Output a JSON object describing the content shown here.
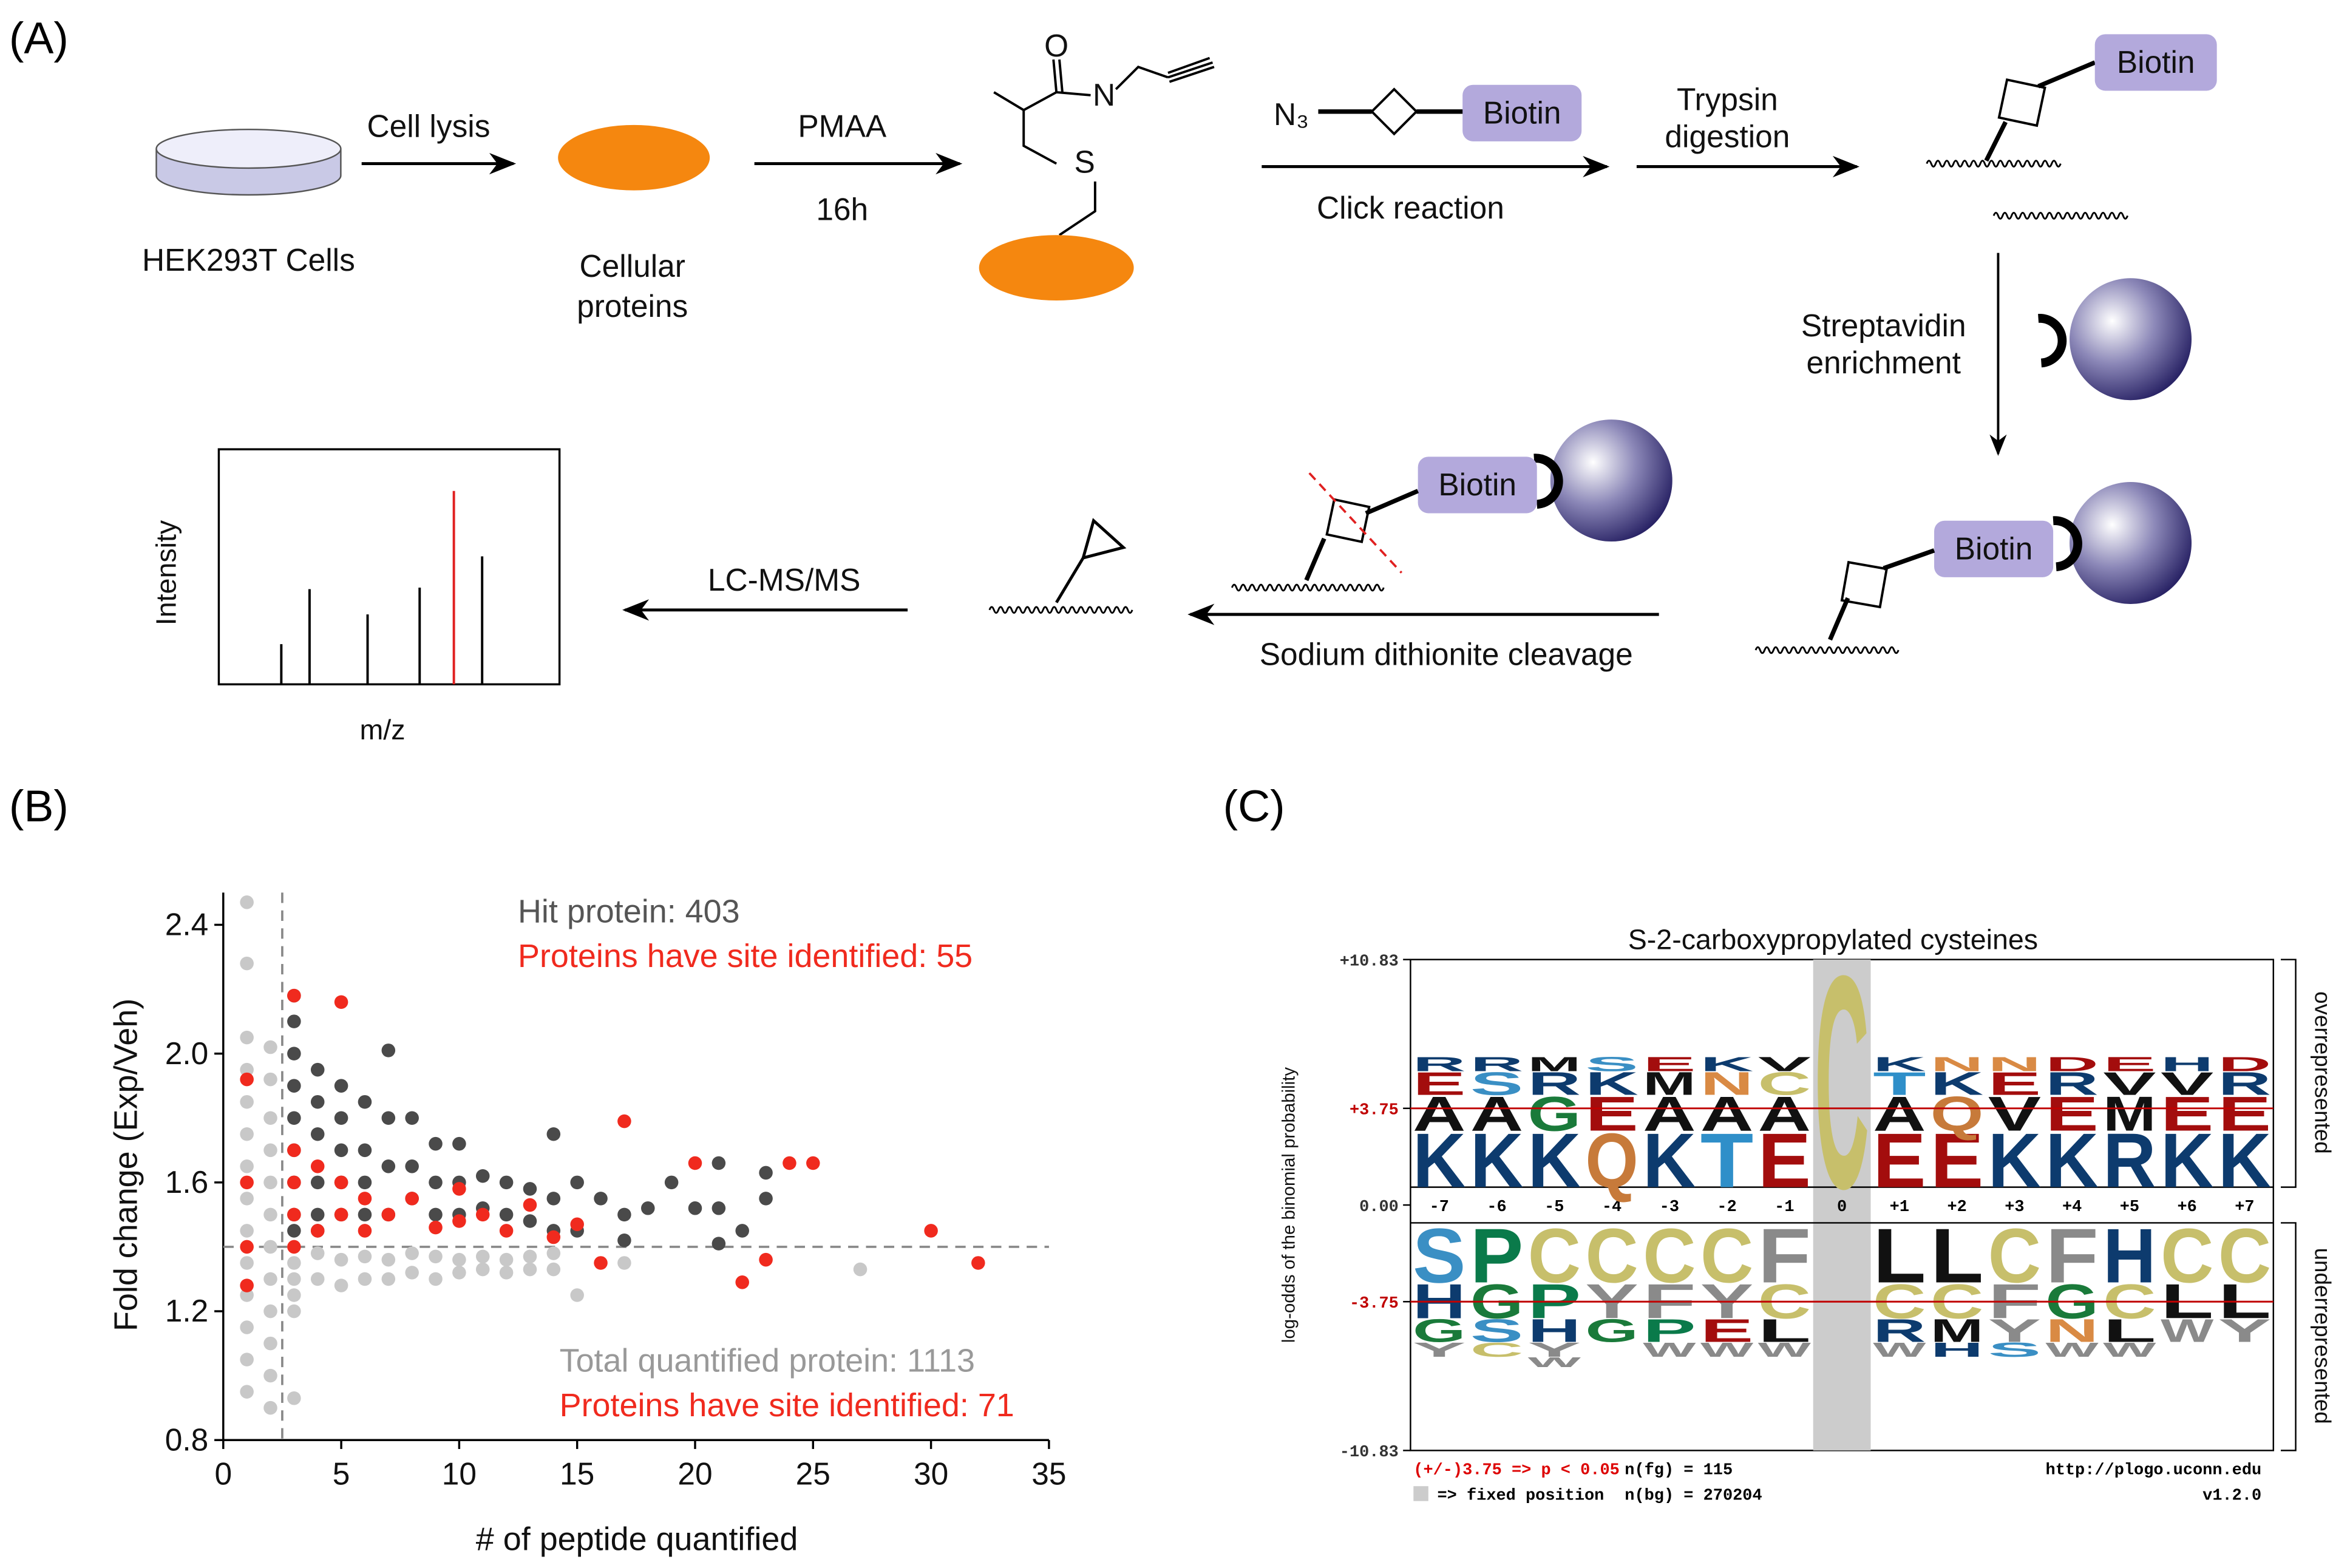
{
  "diagram": {
    "label": "(A)",
    "cell_lysis": "Cell lysis",
    "cells": "HEK293T Cells",
    "proteins": [
      "Cellular",
      "proteins"
    ],
    "reagent": "PMAA",
    "time": "16h",
    "oxygen": "O",
    "nitrogen": "N",
    "sulfur": "S",
    "azide": "N₃",
    "biotin": "Biotin",
    "click": "Click reaction",
    "trypsin": [
      "Trypsin",
      "digestion"
    ],
    "streptavidin": [
      "Streptavidin",
      "enrichment"
    ],
    "cleavage": "Sodium dithionite cleavage",
    "lcms": "LC-MS/MS",
    "intensity": "Intensity",
    "mz": "m/z"
  },
  "chart_data": {
    "type": "scatter",
    "panel_label": "(B)",
    "xlabel": "# of peptide quantified",
    "ylabel": "Fold change (Exp/Veh)",
    "xlim": [
      0,
      35
    ],
    "xticks": [
      0,
      5,
      10,
      15,
      20,
      25,
      30,
      35
    ],
    "ylim": [
      0.8,
      2.5
    ],
    "yticks": [
      0.8,
      1.2,
      1.6,
      {
        "value": 2,
        "label": "2.0"
      },
      2.4
    ],
    "reference_lines": {
      "x": 2.5,
      "y": 1.4
    },
    "annotations": [
      {
        "text": "Hit protein: 403",
        "color": "#555555"
      },
      {
        "text": "Proteins have site identified: 55",
        "color": "#f02a1e"
      },
      {
        "text": "Total quantified protein: 1113",
        "color": "#999999"
      },
      {
        "text": "Proteins have site identified: 71",
        "color": "#f02a1e"
      }
    ],
    "series": [
      {
        "color": "#c8c8c8",
        "x": [
          1,
          1,
          1,
          1,
          1,
          1,
          1,
          1,
          1,
          1,
          1,
          1,
          1,
          1,
          2,
          2,
          2,
          2,
          2,
          2,
          2,
          2,
          2,
          2,
          2,
          2,
          3,
          3,
          3,
          3,
          3,
          4,
          4,
          5,
          5,
          6,
          6,
          7,
          7,
          8,
          8,
          9,
          9,
          10,
          10,
          11,
          11,
          12,
          12,
          13,
          13,
          14,
          14,
          15,
          17,
          27
        ],
        "values": [
          2.47,
          2.28,
          2.05,
          1.95,
          1.85,
          1.75,
          1.65,
          1.55,
          1.45,
          1.35,
          1.25,
          1.15,
          1.05,
          0.95,
          2.02,
          1.92,
          1.8,
          1.7,
          1.6,
          1.5,
          1.4,
          1.3,
          1.2,
          1.1,
          1.0,
          0.9,
          1.35,
          1.3,
          1.25,
          1.2,
          0.93,
          1.38,
          1.3,
          1.36,
          1.28,
          1.37,
          1.3,
          1.36,
          1.3,
          1.38,
          1.32,
          1.37,
          1.3,
          1.36,
          1.32,
          1.37,
          1.33,
          1.36,
          1.32,
          1.37,
          1.33,
          1.38,
          1.33,
          1.25,
          1.35,
          1.33
        ]
      },
      {
        "color": "#4a4a4a",
        "x": [
          3,
          3,
          3,
          3,
          3,
          3,
          3,
          3,
          3,
          4,
          4,
          4,
          4,
          4,
          4,
          5,
          5,
          5,
          5,
          5,
          6,
          6,
          6,
          6,
          7,
          7,
          7,
          7,
          8,
          8,
          8,
          9,
          9,
          9,
          10,
          10,
          10,
          11,
          11,
          12,
          12,
          13,
          13,
          14,
          14,
          14,
          15,
          15,
          16,
          17,
          17,
          18,
          19,
          20,
          21,
          21,
          21,
          22,
          23,
          23
        ],
        "values": [
          2.18,
          2.1,
          2.0,
          1.9,
          1.8,
          1.7,
          1.6,
          1.5,
          1.45,
          1.95,
          1.85,
          1.75,
          1.6,
          1.5,
          1.45,
          1.9,
          1.8,
          1.7,
          1.6,
          1.5,
          1.85,
          1.7,
          1.6,
          1.5,
          2.01,
          1.8,
          1.65,
          1.5,
          1.8,
          1.65,
          1.55,
          1.72,
          1.6,
          1.5,
          1.72,
          1.6,
          1.5,
          1.62,
          1.52,
          1.6,
          1.5,
          1.58,
          1.48,
          1.75,
          1.55,
          1.45,
          1.6,
          1.45,
          1.55,
          1.5,
          1.42,
          1.52,
          1.6,
          1.52,
          1.66,
          1.52,
          1.41,
          1.45,
          1.63,
          1.55
        ]
      },
      {
        "color": "#f02a1e",
        "x": [
          1,
          1,
          1,
          1,
          3,
          3,
          3,
          3,
          3,
          4,
          4,
          5,
          5,
          5,
          6,
          6,
          7,
          8,
          9,
          10,
          10,
          11,
          12,
          13,
          14,
          15,
          16,
          17,
          20,
          22,
          23,
          24,
          25,
          30,
          32
        ],
        "values": [
          1.92,
          1.6,
          1.4,
          1.28,
          2.18,
          1.7,
          1.6,
          1.5,
          1.4,
          1.65,
          1.45,
          2.16,
          1.6,
          1.5,
          1.55,
          1.45,
          1.5,
          1.55,
          1.46,
          1.58,
          1.48,
          1.5,
          1.45,
          1.53,
          1.43,
          1.47,
          1.35,
          1.79,
          1.66,
          1.29,
          1.36,
          1.66,
          1.66,
          1.45,
          1.35
        ]
      }
    ]
  },
  "plogo": {
    "panel_label": "(C)",
    "title": "S-2-carboxypropylated cysteines",
    "ylabel": "log-odds of the binomial probability",
    "ylim": [
      -10.83,
      10.83
    ],
    "yticks": [
      {
        "value": 10.83,
        "label": "+10.83"
      },
      {
        "value": 3.75,
        "label": "+3.75"
      },
      {
        "value": 0,
        "label": "0.00"
      },
      {
        "value": -3.75,
        "label": "-3.75"
      },
      {
        "value": -10.83,
        "label": "-10.83"
      }
    ],
    "significance": [
      3.75,
      -3.75
    ],
    "significance_color": "#c00000",
    "over_label": "overrepresented",
    "under_label": "underrepresented",
    "colors": {
      "K": "#0d3b6e",
      "R": "#0d3b6e",
      "H": "#0d3b6e",
      "E": "#a30d0d",
      "D": "#a30d0d",
      "A": "#111111",
      "V": "#111111",
      "L": "#111111",
      "M": "#111111",
      "I": "#111111",
      "X": "#111111",
      "F": "#8a8a8a",
      "W": "#8a8a8a",
      "Y": "#8a8a8a",
      "P": "#0a7a4a",
      "G": "#1a7a3a",
      "S": "#3a8fc4",
      "T": "#2f8fc9",
      "Q": "#c77a3a",
      "N": "#d98a44",
      "C": "#c7bf6b"
    },
    "positions": [
      {
        "label": "-7",
        "over": [
          "K",
          "A",
          "E",
          "R"
        ],
        "under": [
          "S",
          "H",
          "G",
          "Y"
        ]
      },
      {
        "label": "-6",
        "over": [
          "K",
          "A",
          "S",
          "R"
        ],
        "under": [
          "P",
          "G",
          "S",
          "C"
        ]
      },
      {
        "label": "-5",
        "over": [
          "K",
          "G",
          "R",
          "M"
        ],
        "under": [
          "C",
          "P",
          "H",
          "Y",
          "W"
        ]
      },
      {
        "label": "-4",
        "over": [
          "Q",
          "E",
          "K",
          "S"
        ],
        "under": [
          "C",
          "Y",
          "G"
        ]
      },
      {
        "label": "-3",
        "over": [
          "K",
          "A",
          "M",
          "E"
        ],
        "under": [
          "C",
          "F",
          "P",
          "W"
        ]
      },
      {
        "label": "-2",
        "over": [
          "T",
          "A",
          "N",
          "K"
        ],
        "under": [
          "C",
          "Y",
          "E",
          "W"
        ]
      },
      {
        "label": "-1",
        "over": [
          "E",
          "A",
          "C",
          "V"
        ],
        "under": [
          "F",
          "C",
          "L",
          "W"
        ]
      },
      {
        "label": "0",
        "fixed": true,
        "over": [
          "C"
        ],
        "under": []
      },
      {
        "label": "+1",
        "over": [
          "E",
          "A",
          "T",
          "K"
        ],
        "under": [
          "L",
          "C",
          "R",
          "W"
        ]
      },
      {
        "label": "+2",
        "over": [
          "E",
          "Q",
          "K",
          "N"
        ],
        "under": [
          "L",
          "C",
          "M",
          "H"
        ]
      },
      {
        "label": "+3",
        "over": [
          "K",
          "V",
          "E",
          "N"
        ],
        "under": [
          "C",
          "F",
          "Y",
          "S"
        ]
      },
      {
        "label": "+4",
        "over": [
          "K",
          "E",
          "R",
          "D"
        ],
        "under": [
          "F",
          "G",
          "N",
          "W"
        ]
      },
      {
        "label": "+5",
        "over": [
          "R",
          "M",
          "V",
          "E"
        ],
        "under": [
          "H",
          "C",
          "L",
          "W"
        ]
      },
      {
        "label": "+6",
        "over": [
          "K",
          "E",
          "V",
          "H"
        ],
        "under": [
          "C",
          "L",
          "W"
        ]
      },
      {
        "label": "+7",
        "over": [
          "K",
          "E",
          "R",
          "D"
        ],
        "under": [
          "C",
          "L",
          "Y"
        ]
      }
    ],
    "footer": {
      "p_value": "(+/-)3.75 => p < 0.05",
      "n_fg": "n(fg) = 115",
      "fixed": "=> fixed position",
      "n_bg": "n(bg) = 270204",
      "url": "http://plogo.uconn.edu",
      "version": "v1.2.0"
    }
  }
}
